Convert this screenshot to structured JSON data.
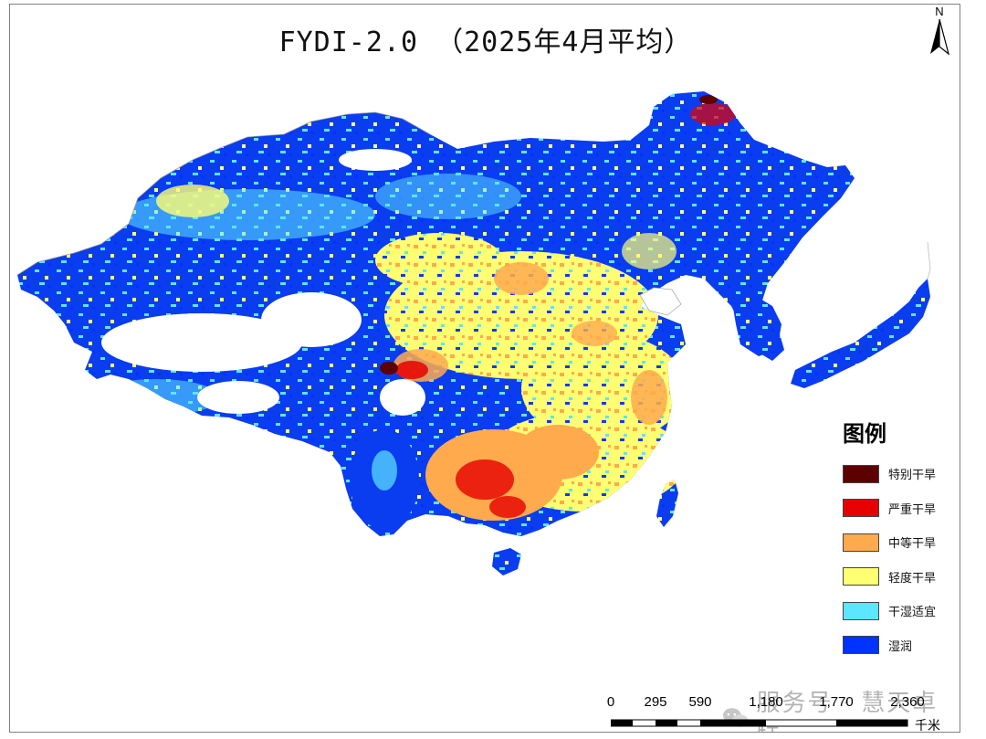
{
  "map": {
    "title": "FYDI-2.0 （2025年4月平均）",
    "north_label": "N",
    "legend": {
      "title": "图例",
      "items": [
        {
          "label": "特别干旱",
          "color": "#5C0000"
        },
        {
          "label": "严重干旱",
          "color": "#E60000"
        },
        {
          "label": "中等干旱",
          "color": "#FFAA4D"
        },
        {
          "label": "轻度干旱",
          "color": "#FFFF73"
        },
        {
          "label": "干湿适宜",
          "color": "#5CE6FF"
        },
        {
          "label": "湿润",
          "color": "#0033FF"
        }
      ]
    },
    "scale_bar": {
      "ticks": [
        "0",
        "295",
        "590",
        "1,180",
        "1,770",
        "2,360"
      ],
      "unit": "千米"
    },
    "watermark": "服务号 · 慧天卓特"
  }
}
